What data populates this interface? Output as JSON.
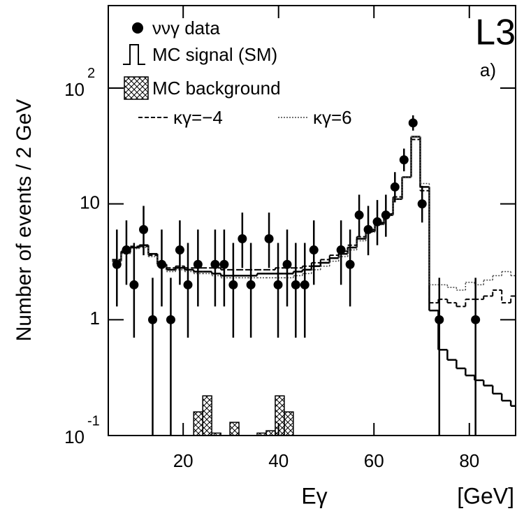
{
  "chart_data": {
    "type": "histogram",
    "annotations": [
      "L3",
      "a)"
    ],
    "xlabel": "Eγ",
    "xunit": "[GeV]",
    "ylabel": "Number of events / 2 GeV",
    "log_y": true,
    "xlim": [
      4.3,
      89.7
    ],
    "ylim": [
      0.1,
      515
    ],
    "xticks": [
      20,
      40,
      60,
      80
    ],
    "yticks": [
      {
        "value": 0.1,
        "label": "10",
        "superscript": "-1"
      },
      1,
      10,
      {
        "value": 100,
        "label": "10",
        "superscript": "2"
      }
    ],
    "bins": [
      5.1,
      7.0,
      8.9,
      10.8,
      12.7,
      14.6,
      16.5,
      18.4,
      20.3,
      22.2,
      24.1,
      26.0,
      27.9,
      29.8,
      31.7,
      33.6,
      35.5,
      37.4,
      39.3,
      41.2,
      43.1,
      45.0,
      46.9,
      48.8,
      50.7,
      52.6,
      54.5,
      56.4,
      58.3,
      60.2,
      62.1,
      64.0,
      65.9,
      67.8,
      69.7,
      71.6,
      73.5,
      75.4,
      77.3,
      79.2,
      81.1,
      83.0,
      84.9,
      86.8,
      88.7,
      90.6
    ],
    "points": {
      "name": "ννγ data",
      "color": "#000000",
      "x": [
        6.1,
        8.1,
        9.7,
        11.7,
        13.6,
        15.5,
        17.4,
        19.3,
        21.0,
        23.1,
        26.7,
        28.6,
        30.5,
        32.4,
        34.2,
        38.0,
        39.9,
        41.8,
        43.6,
        45.5,
        47.4,
        53.1,
        55.0,
        56.9,
        58.8,
        60.7,
        62.5,
        64.4,
        66.3,
        68.2,
        70.1,
        73.7,
        81.3
      ],
      "values": [
        3,
        4,
        2,
        6,
        1,
        3,
        1,
        4,
        2,
        3,
        3,
        3,
        2,
        5,
        2,
        5,
        2,
        3,
        2,
        2,
        4,
        4,
        3,
        8,
        6,
        7,
        8,
        14,
        24,
        50,
        10,
        1,
        1
      ],
      "errors_low": [
        1.7,
        2.0,
        1.3,
        2.4,
        1,
        1.7,
        1,
        2.0,
        1.3,
        1.7,
        1.7,
        1.7,
        1.3,
        2.2,
        1.3,
        2.2,
        1.3,
        1.7,
        1.3,
        1.3,
        2.0,
        2.0,
        1.7,
        2.8,
        2.4,
        2.6,
        2.8,
        3.7,
        4.9,
        7.1,
        3.1,
        1,
        1
      ],
      "errors_high": [
        3.0,
        3.2,
        2.6,
        3.6,
        1.3,
        3.0,
        1.3,
        3.2,
        2.6,
        3.0,
        3.0,
        3.0,
        2.6,
        3.4,
        2.6,
        3.4,
        2.6,
        3.0,
        2.6,
        2.6,
        3.2,
        3.2,
        3.0,
        4.0,
        3.6,
        3.8,
        4.0,
        4.8,
        6.0,
        8.1,
        4.3,
        1.3,
        1.3
      ]
    },
    "series": [
      {
        "name": "MC signal (SM)",
        "color": "#000000",
        "style": "solid",
        "values": [
          3.2,
          3.8,
          4.2,
          4.4,
          3.7,
          3.0,
          2.7,
          2.8,
          2.7,
          2.6,
          2.6,
          2.5,
          2.4,
          2.4,
          2.4,
          2.4,
          2.5,
          2.5,
          2.5,
          2.5,
          2.6,
          2.7,
          2.9,
          3.1,
          3.4,
          3.7,
          4.2,
          5.0,
          5.8,
          6.7,
          8.0,
          11,
          17,
          38,
          14,
          1.2,
          0.55,
          0.45,
          0.38,
          0.33,
          0.3,
          0.27,
          0.23,
          0.2,
          0.18
        ]
      },
      {
        "name": "MC background",
        "color": "#000000",
        "style": "hatched",
        "values": [
          null,
          null,
          null,
          null,
          null,
          null,
          null,
          null,
          null,
          0.16,
          0.22,
          0.105,
          null,
          0.13,
          null,
          null,
          0.105,
          0.11,
          0.22,
          0.16,
          null,
          null,
          null,
          null,
          null,
          null,
          null,
          null,
          null,
          null,
          null,
          null,
          null,
          null,
          null,
          null,
          null,
          null,
          null,
          null,
          null,
          null,
          null,
          null,
          null
        ]
      },
      {
        "name": "κγ=−4",
        "color": "#000000",
        "style": "dashed",
        "values": [
          3.3,
          3.9,
          4.3,
          4.3,
          3.6,
          3.0,
          2.8,
          2.9,
          2.8,
          2.8,
          2.8,
          2.8,
          2.7,
          2.7,
          2.7,
          2.7,
          2.7,
          2.7,
          2.8,
          2.8,
          2.8,
          2.9,
          3.1,
          3.3,
          3.6,
          3.9,
          4.4,
          5.2,
          6.0,
          6.9,
          8.2,
          11.5,
          17,
          36,
          13,
          1.4,
          1.5,
          1.4,
          1.3,
          1.5,
          1.5,
          1.6,
          1.8,
          1.4,
          1.6
        ]
      },
      {
        "name": "κγ=6",
        "color": "#444444",
        "style": "dotted",
        "values": [
          3.2,
          3.7,
          4.1,
          4.2,
          3.5,
          2.9,
          2.6,
          2.7,
          2.6,
          2.5,
          2.5,
          2.4,
          2.3,
          2.3,
          2.3,
          2.3,
          2.3,
          2.3,
          2.3,
          2.3,
          2.4,
          2.5,
          2.7,
          2.9,
          3.2,
          3.5,
          4.0,
          4.8,
          5.7,
          6.6,
          8.0,
          11,
          17,
          38,
          15,
          2.0,
          2.0,
          1.9,
          1.8,
          2.1,
          2.0,
          2.2,
          2.4,
          2.6,
          2.4
        ]
      }
    ]
  }
}
